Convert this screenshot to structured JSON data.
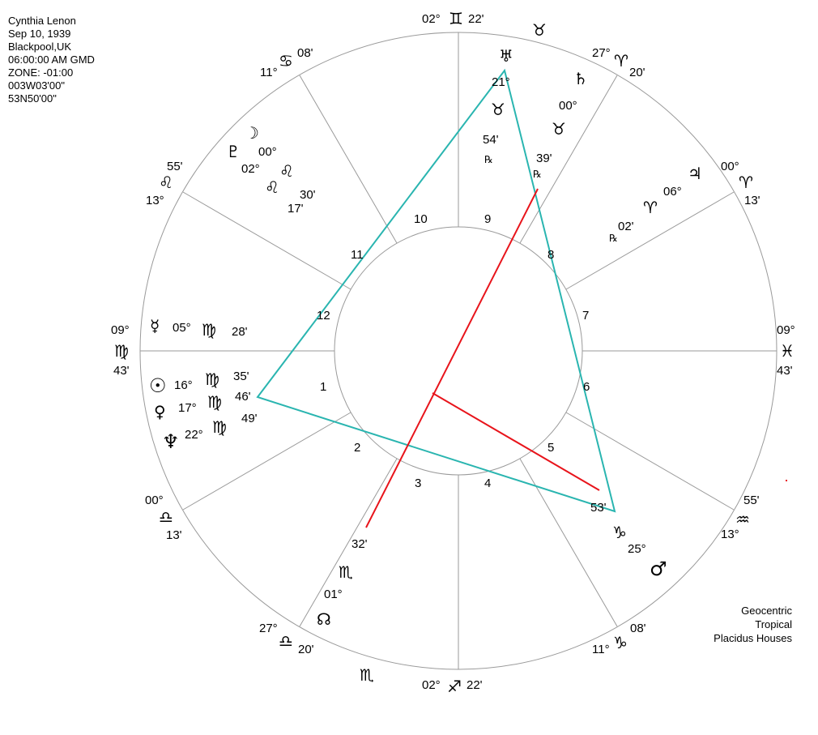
{
  "chart_info": {
    "lines": [
      "Cynthia Lenon",
      "Sep 10, 1939",
      "Blackpool,UK",
      "06:00:00 AM GMD",
      "ZONE: -01:00",
      "003W03'00\"",
      "53N50'00\""
    ]
  },
  "system_info": {
    "lines": [
      "Geocentric",
      "Tropical",
      "Placidus Houses"
    ]
  },
  "colors": {
    "wheel_lines": "#9a9a9a",
    "triangle": "#2ab5b0",
    "red_lines": "#e8141b"
  },
  "house_numbers": [
    "10",
    "9",
    "11",
    "8",
    "12",
    "7",
    "1",
    "6",
    "2",
    "5",
    "3",
    "4"
  ],
  "cusp_labels": [
    {
      "deg": "02°",
      "glyph": "♊",
      "min": "22'"
    },
    {
      "deg": "27°",
      "glyph": "♈",
      "min": "20'"
    },
    {
      "deg": "00°",
      "glyph": "♈",
      "min": "13'"
    },
    {
      "deg": "09°",
      "glyph": "♓",
      "min": "43'"
    },
    {
      "deg": "55'",
      "glyph": "♒",
      "min": "13°"
    },
    {
      "deg": "11°",
      "glyph": "♑",
      "min": "08'"
    },
    {
      "deg": "02°",
      "glyph": "♐",
      "min": "22'"
    },
    {
      "deg": "27°",
      "glyph": "♎",
      "min": "20'"
    },
    {
      "deg": "00°",
      "glyph": "♎",
      "min": "13'"
    },
    {
      "deg": "09°",
      "glyph": "♍",
      "min": "43'"
    },
    {
      "deg": "55'",
      "glyph": "♌",
      "min": "13°"
    },
    {
      "deg": "11°",
      "glyph": "♋",
      "min": "08'"
    }
  ],
  "planets": [
    {
      "name": "Uranus",
      "glyph": "♅",
      "deg": "21°",
      "sign": "♉",
      "min": "54'",
      "retro": "℞"
    },
    {
      "name": "Saturn",
      "glyph": "♄",
      "deg": "00°",
      "sign": "♉",
      "min": "39'",
      "retro": "℞"
    },
    {
      "name": "Jupiter",
      "glyph": "♃",
      "deg": "06°",
      "sign": "♈",
      "min": "02'",
      "retro": "℞"
    },
    {
      "name": "Moon",
      "glyph": "☽",
      "deg": "00°",
      "sign": "♌",
      "min": "30'"
    },
    {
      "name": "Pluto",
      "glyph": "♇",
      "deg": "02°",
      "sign": "♌",
      "min": "17'"
    },
    {
      "name": "Mercury",
      "glyph": "☿",
      "deg": "05°",
      "sign": "♍",
      "min": "28'"
    },
    {
      "name": "Sun",
      "glyph": "☉",
      "deg": "16°",
      "sign": "♍",
      "min": "35'"
    },
    {
      "name": "Venus",
      "glyph": "♀",
      "deg": "17°",
      "sign": "♍",
      "min": "46'"
    },
    {
      "name": "Neptune",
      "glyph": "♆",
      "deg": "22°",
      "sign": "♍",
      "min": "49'"
    },
    {
      "name": "Mars",
      "glyph": "♂",
      "deg": "25°",
      "sign": "♑",
      "min": "53'"
    },
    {
      "name": "North Node",
      "glyph": "☊",
      "deg": "01°",
      "sign": "♏",
      "min": "32'"
    }
  ]
}
